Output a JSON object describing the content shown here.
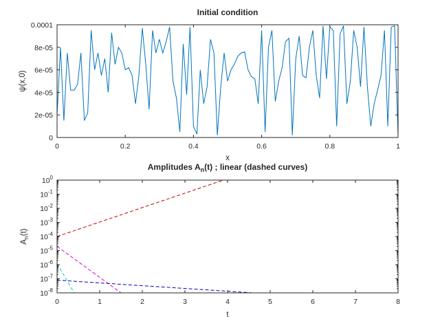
{
  "chart_data": [
    {
      "type": "line",
      "title": "Initial condition",
      "xlabel": "x",
      "ylabel": "ψ(x,0)",
      "xlim": [
        0,
        1
      ],
      "ylim": [
        0,
        0.0001
      ],
      "xticks": [
        0,
        0.2,
        0.4,
        0.6,
        0.8,
        1
      ],
      "xtick_labels": [
        "0",
        "0.2",
        "0.4",
        "0.6",
        "0.8",
        "1"
      ],
      "yticks": [
        0,
        2e-05,
        4e-05,
        6e-05,
        8e-05,
        0.0001
      ],
      "ytick_labels": [
        "0",
        "2e-05",
        "4e-05",
        "6e-05",
        "8e-05",
        "0.0001"
      ],
      "series": [
        {
          "name": "psi",
          "color": "#0072bd",
          "x": [
            0,
            0.01,
            0.02,
            0.03,
            0.04,
            0.05,
            0.06,
            0.07,
            0.08,
            0.09,
            0.1,
            0.11,
            0.12,
            0.13,
            0.14,
            0.15,
            0.16,
            0.17,
            0.18,
            0.19,
            0.2,
            0.21,
            0.22,
            0.23,
            0.24,
            0.25,
            0.26,
            0.27,
            0.28,
            0.29,
            0.3,
            0.31,
            0.32,
            0.33,
            0.34,
            0.35,
            0.36,
            0.37,
            0.38,
            0.39,
            0.4,
            0.41,
            0.42,
            0.43,
            0.44,
            0.45,
            0.46,
            0.47,
            0.48,
            0.49,
            0.5,
            0.51,
            0.52,
            0.53,
            0.54,
            0.55,
            0.56,
            0.57,
            0.58,
            0.59,
            0.6,
            0.61,
            0.62,
            0.63,
            0.64,
            0.65,
            0.66,
            0.67,
            0.68,
            0.69,
            0.7,
            0.71,
            0.72,
            0.73,
            0.74,
            0.75,
            0.76,
            0.77,
            0.78,
            0.79,
            0.8,
            0.81,
            0.82,
            0.83,
            0.84,
            0.85,
            0.86,
            0.87,
            0.88,
            0.89,
            0.9,
            0.91,
            0.92,
            0.93,
            0.94,
            0.95,
            0.96,
            0.97,
            0.98,
            0.99,
            1
          ],
          "y": [
            2e-05,
            8e-05,
            1.5e-05,
            7.5e-05,
            4.2e-05,
            4.2e-05,
            4.7e-05,
            7.5e-05,
            1.5e-05,
            2.2e-05,
            9.5e-05,
            6e-05,
            7.5e-05,
            5.5e-05,
            7e-05,
            4e-05,
            9.3e-05,
            6.5e-05,
            8e-05,
            7.5e-05,
            6e-05,
            6.2e-05,
            5.5e-05,
            3e-05,
            5.5e-05,
            9.7e-05,
            6.5e-05,
            2.5e-05,
            9.5e-05,
            7.5e-05,
            8.7e-05,
            7.5e-05,
            8.5e-05,
            9.8e-05,
            5e-05,
            3.5e-05,
            5e-06,
            8.3e-05,
            3.8e-05,
            9.8e-05,
            1e-05,
            3e-06,
            6e-05,
            3e-05,
            4.5e-05,
            8.7e-05,
            7.5e-05,
            2e-06,
            4.5e-05,
            7.5e-05,
            5e-05,
            6e-05,
            6.5e-05,
            7.2e-05,
            7.5e-05,
            7.6e-05,
            6e-05,
            5.4e-05,
            5.2e-05,
            3e-05,
            9.5e-05,
            5e-06,
            8e-05,
            9.5e-05,
            3.2e-05,
            5e-05,
            6.2e-05,
            8.5e-05,
            8.8e-05,
            2e-06,
            7e-05,
            9e-05,
            5.5e-05,
            5.3e-05,
            8e-05,
            9.5e-05,
            5.5e-05,
            3.5e-05,
            9.9e-05,
            5.2e-05,
            9.8e-05,
            9.5e-05,
            1e-05,
            9.2e-05,
            9.9e-05,
            3e-05,
            5e-05,
            9.5e-05,
            8e-05,
            4.5e-05,
            9.8e-05,
            4.5e-05,
            1e-05,
            3e-05,
            4.2e-05,
            5.5e-05,
            9.5e-05,
            1e-05,
            9.8e-05,
            9.9e-05,
            1e-06
          ]
        }
      ]
    },
    {
      "type": "line",
      "title": "Amplitudes A_n(t) ; linear (dashed curves)",
      "title_parts": {
        "before": "Amplitudes A",
        "sub": "n",
        "after": "(t) ; linear (dashed curves)"
      },
      "xlabel": "t",
      "ylabel": "A_n(t)",
      "ylabel_parts": {
        "before": "A",
        "sub": "n",
        "after": "(t)"
      },
      "yscale": "log",
      "xlim": [
        0,
        8
      ],
      "ylim": [
        1e-08,
        1
      ],
      "xticks": [
        0,
        1,
        2,
        3,
        4,
        5,
        6,
        7,
        8
      ],
      "xtick_labels": [
        "0",
        "1",
        "2",
        "3",
        "4",
        "5",
        "6",
        "7",
        "8"
      ],
      "ytick_exponents": [
        -8,
        -7,
        -6,
        -5,
        -4,
        -3,
        -2,
        -1,
        0
      ],
      "ytick_base": "10",
      "series": [
        {
          "name": "mode-red",
          "color": "#c00000",
          "style": "dashed",
          "t": [
            0,
            3.9
          ],
          "y": [
            0.0001,
            1
          ]
        },
        {
          "name": "mode-magenta",
          "color": "#dd00dd",
          "style": "dashed",
          "t": [
            0,
            1.5
          ],
          "y": [
            2e-05,
            1e-08
          ]
        },
        {
          "name": "mode-blue",
          "color": "#0000b0",
          "style": "dashed",
          "t": [
            0,
            4.6
          ],
          "y": [
            8e-08,
            1e-08
          ]
        },
        {
          "name": "mode-cyan",
          "color": "#00c8d8",
          "style": "dashed",
          "t": [
            0,
            0.4
          ],
          "y": [
            1.2e-06,
            1e-08
          ]
        }
      ]
    }
  ]
}
